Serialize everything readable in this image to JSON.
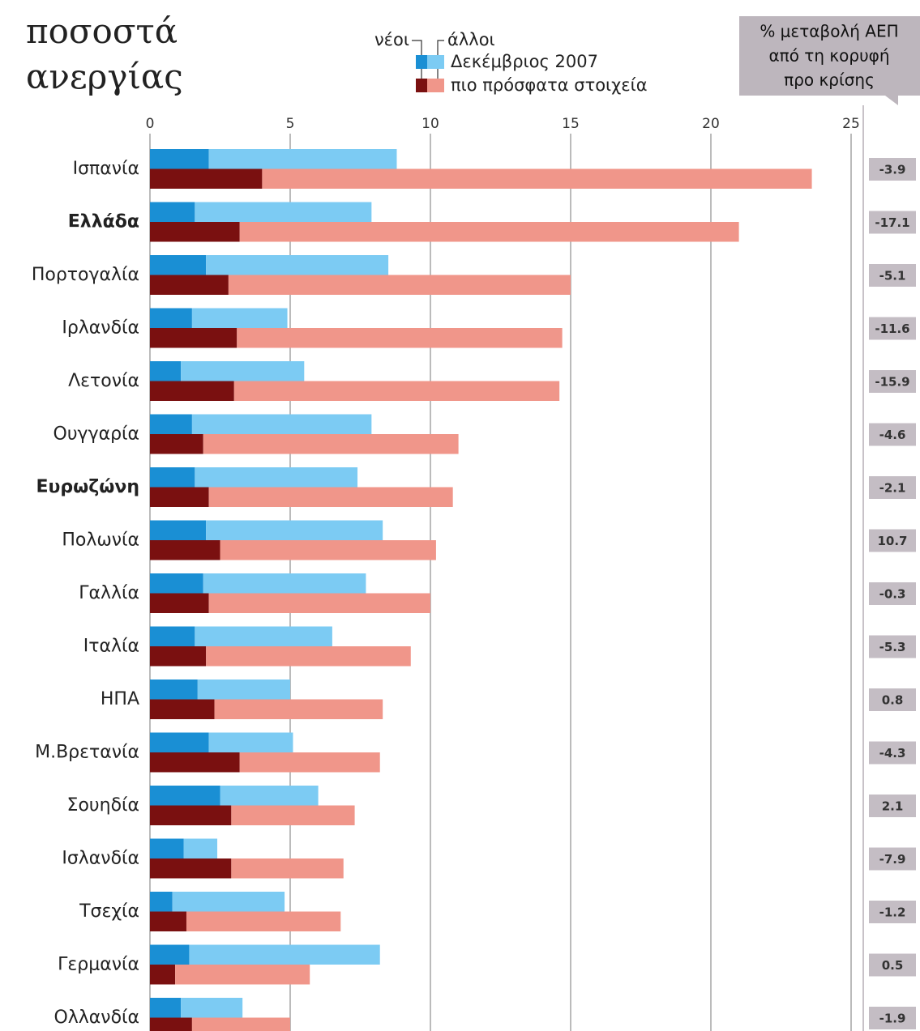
{
  "chart_data": {
    "type": "paired-stacked-barh",
    "title_lines": [
      "ποσοστά",
      "ανεργίας"
    ],
    "legend_parts": [
      "νέοι",
      "άλλοι"
    ],
    "categories": [
      "Ισπανία",
      "Ελλάδα",
      "Πορτογαλία",
      "Ιρλανδία",
      "Λετονία",
      "Ουγγαρία",
      "Ευρωζώνη",
      "Πολωνία",
      "Γαλλία",
      "Ιταλία",
      "ΗΠΑ",
      "Μ.Βρετανία",
      "Σουηδία",
      "Ισλανδία",
      "Τσεχία",
      "Γερμανία",
      "Ολλανδία"
    ],
    "bold_categories": [
      1,
      6
    ],
    "groups": [
      {
        "name": "Δεκέμβριος 2007",
        "young_color": "#1a8fd4",
        "others_color": "#7ccbf3",
        "young": [
          2.1,
          1.6,
          2.0,
          1.5,
          1.1,
          1.5,
          1.6,
          2.0,
          1.9,
          1.6,
          1.7,
          2.1,
          2.5,
          1.2,
          0.8,
          1.4,
          1.1
        ],
        "others": [
          6.7,
          6.3,
          6.5,
          3.4,
          4.4,
          6.4,
          5.8,
          6.3,
          5.8,
          4.9,
          3.3,
          3.0,
          3.5,
          1.2,
          4.0,
          6.8,
          2.2
        ]
      },
      {
        "name": "πιο πρόσφατα στοιχεία",
        "young_color": "#7a1010",
        "others_color": "#f0968a",
        "young": [
          4.0,
          3.2,
          2.8,
          3.1,
          3.0,
          1.9,
          2.1,
          2.5,
          2.1,
          2.0,
          2.3,
          3.2,
          2.9,
          2.9,
          1.3,
          0.9,
          1.5
        ],
        "others": [
          19.6,
          17.8,
          12.2,
          11.6,
          11.6,
          9.1,
          8.7,
          7.7,
          7.9,
          7.3,
          6.0,
          5.0,
          4.4,
          4.0,
          5.5,
          4.8,
          3.5
        ]
      }
    ],
    "gdp_title_lines": [
      "% μεταβολή ΑΕΠ",
      "από τη κορυφή",
      "προ κρίσης"
    ],
    "gdp_change": [
      -3.9,
      -17.1,
      -5.1,
      -11.6,
      -15.9,
      -4.6,
      -2.1,
      10.7,
      -0.3,
      -5.3,
      0.8,
      -4.3,
      2.1,
      -7.9,
      -1.2,
      0.5,
      -1.9
    ],
    "xlim": [
      0,
      25
    ],
    "xticks": [
      0,
      5,
      10,
      15,
      20,
      25
    ],
    "grid": true
  }
}
